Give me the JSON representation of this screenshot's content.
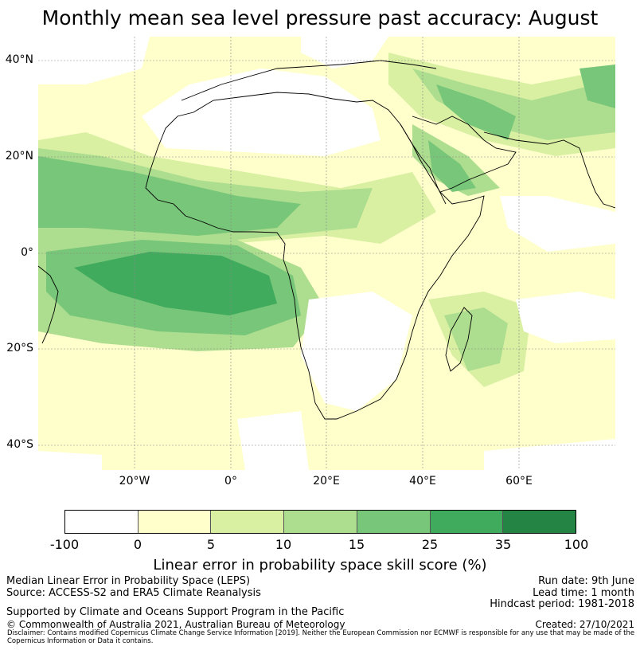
{
  "title": "Monthly mean sea level pressure past accuracy: August",
  "map": {
    "lat_ticks": [
      "40°N",
      "20°N",
      "0°",
      "20°S",
      "40°S"
    ],
    "lon_ticks": [
      "20°W",
      "0°",
      "20°E",
      "40°E",
      "60°E"
    ],
    "extent": {
      "lon": [
        -40,
        80
      ],
      "lat": [
        -45,
        45
      ]
    }
  },
  "colorbar": {
    "ticks": [
      "-100",
      "0",
      "5",
      "10",
      "15",
      "25",
      "35",
      "100"
    ],
    "colors": [
      "#ffffff",
      "#ffffcc",
      "#d9f0a3",
      "#addd8e",
      "#78c679",
      "#41ab5d",
      "#238443"
    ],
    "label": "Linear error in probability space skill score (%)"
  },
  "footer": {
    "left1": "Median Linear Error in Probability Space (LEPS)",
    "left2": "Source: ACCESS-S2 and ERA5 Climate Reanalysis",
    "left3": "Supported by Climate and Oceans Support Program in the Pacific",
    "left4": "© Commonwealth of Australia 2021, Australian Bureau of Meteorology",
    "right1": "Run date: 9th June",
    "right2": "Lead time: 1 month",
    "right3": "Hindcast period: 1981-2018",
    "right4": "Created: 27/10/2021",
    "disclaimer": "Disclaimer: Contains modified Copernicus Climate Change Service Information [2019]. Neither the European Commission nor ECMWF is responsible for any use that may be made of the Copernicus Information or Data it contains."
  }
}
